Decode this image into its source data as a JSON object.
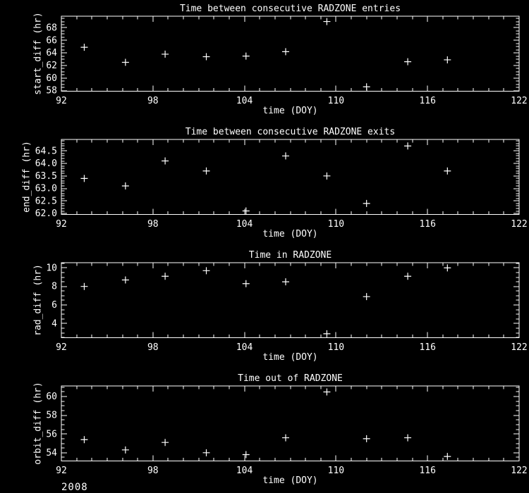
{
  "page": {
    "background": "#000000",
    "foreground": "#ffffff",
    "year_label": "2008"
  },
  "chart_data": [
    {
      "type": "scatter",
      "title": "Time between consecutive RADZONE entries",
      "xlabel": "time (DOY)",
      "ylabel": "start_diff (hr)",
      "marker": "plus",
      "grid": false,
      "legend": "none",
      "xlim": [
        92,
        122
      ],
      "xticks": {
        "values": [
          92,
          98,
          104,
          110,
          116,
          122
        ],
        "labels": [
          "92",
          "98",
          "104",
          "110",
          "116",
          "122"
        ],
        "minor_step": 1
      },
      "ylim": [
        57.9,
        69.85
      ],
      "yticks": {
        "values": [
          58,
          60,
          62,
          64,
          66,
          68
        ],
        "labels": [
          "58",
          "60",
          "62",
          "64",
          "66",
          "68"
        ],
        "minor_step": 0.5
      },
      "x": [
        93.5,
        96.2,
        98.8,
        101.5,
        104.1,
        106.7,
        109.4,
        112.0,
        114.7,
        117.3
      ],
      "y": [
        64.9,
        62.5,
        63.8,
        63.4,
        63.5,
        64.2,
        69.0,
        58.6,
        62.6,
        62.9
      ]
    },
    {
      "type": "scatter",
      "title": "Time between consecutive RADZONE exits",
      "xlabel": "time (DOY)",
      "ylabel": "end_diff (hr)",
      "marker": "plus",
      "grid": false,
      "legend": "none",
      "xlim": [
        92,
        122
      ],
      "xticks": {
        "values": [
          92,
          98,
          104,
          110,
          116,
          122
        ],
        "labels": [
          "92",
          "98",
          "104",
          "110",
          "116",
          "122"
        ],
        "minor_step": 1
      },
      "ylim": [
        61.96,
        64.96
      ],
      "yticks": {
        "values": [
          62.0,
          62.5,
          63.0,
          63.5,
          64.0,
          64.5
        ],
        "labels": [
          "62.0",
          "62.5",
          "63.0",
          "63.5",
          "64.0",
          "64.5"
        ],
        "minor_step": 0.1
      },
      "x": [
        93.5,
        96.2,
        98.8,
        101.5,
        104.1,
        106.7,
        109.4,
        112.0,
        114.7,
        117.3
      ],
      "y": [
        63.4,
        63.1,
        64.1,
        63.7,
        62.1,
        64.3,
        63.5,
        62.4,
        64.7,
        63.7
      ]
    },
    {
      "type": "scatter",
      "title": "Time in RADZONE",
      "xlabel": "time (DOY)",
      "ylabel": "rad_diff (hr)",
      "marker": "plus",
      "grid": false,
      "legend": "none",
      "xlim": [
        92,
        122
      ],
      "xticks": {
        "values": [
          92,
          98,
          104,
          110,
          116,
          122
        ],
        "labels": [
          "92",
          "98",
          "104",
          "110",
          "116",
          "122"
        ],
        "minor_step": 1
      },
      "ylim": [
        2.47,
        10.56
      ],
      "yticks": {
        "values": [
          4,
          6,
          8,
          10
        ],
        "labels": [
          "4",
          "6",
          "8",
          "10"
        ],
        "minor_step": 0.5
      },
      "x": [
        93.5,
        96.2,
        98.8,
        101.5,
        104.1,
        106.7,
        109.4,
        112.0,
        114.7,
        117.3
      ],
      "y": [
        8.0,
        8.7,
        9.1,
        9.7,
        8.3,
        8.5,
        2.9,
        6.9,
        9.1,
        10.0
      ]
    },
    {
      "type": "scatter",
      "title": "Time out of RADZONE",
      "xlabel": "time (DOY)",
      "ylabel": "orbit_diff (hr)",
      "marker": "plus",
      "grid": false,
      "legend": "none",
      "xlim": [
        92,
        122
      ],
      "xticks": {
        "values": [
          92,
          98,
          104,
          110,
          116,
          122
        ],
        "labels": [
          "92",
          "98",
          "104",
          "110",
          "116",
          "122"
        ],
        "minor_step": 1
      },
      "ylim": [
        53.12,
        61.14
      ],
      "yticks": {
        "values": [
          54,
          56,
          58,
          60
        ],
        "labels": [
          "54",
          "56",
          "58",
          "60"
        ],
        "minor_step": 0.5
      },
      "x": [
        93.5,
        96.2,
        98.8,
        101.5,
        104.1,
        106.7,
        109.4,
        112.0,
        114.7,
        117.3
      ],
      "y": [
        55.4,
        54.3,
        55.1,
        54.0,
        53.8,
        55.6,
        60.5,
        55.5,
        55.6,
        53.6
      ]
    }
  ]
}
